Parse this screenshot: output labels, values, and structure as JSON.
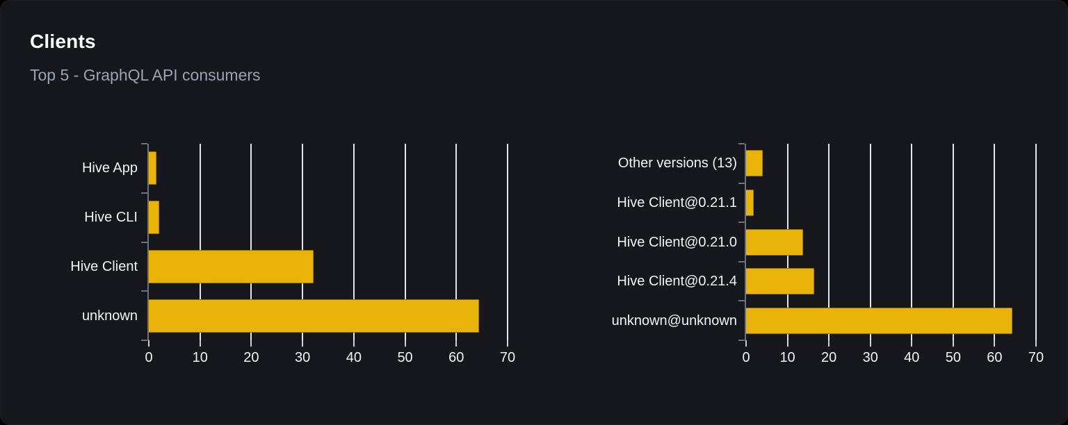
{
  "header": {
    "title": "Clients",
    "subtitle": "Top 5 - GraphQL API consumers"
  },
  "colors": {
    "bar": "#eab308",
    "card_background": "#15171c",
    "gridline": "#e2e6ee",
    "axis": "#6b7280",
    "label_text": "#f3f4f6",
    "subtitle_text": "#9ca3af"
  },
  "chart_data": [
    {
      "id": "clients-by-name",
      "type": "bar",
      "orientation": "horizontal",
      "categories": [
        "Hive App",
        "Hive CLI",
        "Hive Client",
        "unknown"
      ],
      "values": [
        1.5,
        2.1,
        32.1,
        64.4
      ],
      "xlim": [
        0,
        70
      ],
      "xticks": [
        0,
        10,
        20,
        30,
        40,
        50,
        60,
        70
      ],
      "grid": true,
      "legend": "none",
      "bar_color": "#eab308"
    },
    {
      "id": "clients-by-version",
      "type": "bar",
      "orientation": "horizontal",
      "categories": [
        "Other versions (13)",
        "Hive Client@0.21.1",
        "Hive Client@0.21.0",
        "Hive Client@0.21.4",
        "unknown@unknown"
      ],
      "values": [
        4.0,
        1.9,
        13.7,
        16.4,
        64.3
      ],
      "xlim": [
        0,
        70
      ],
      "xticks": [
        0,
        10,
        20,
        30,
        40,
        50,
        60,
        70
      ],
      "grid": true,
      "legend": "none",
      "bar_color": "#eab308"
    }
  ]
}
